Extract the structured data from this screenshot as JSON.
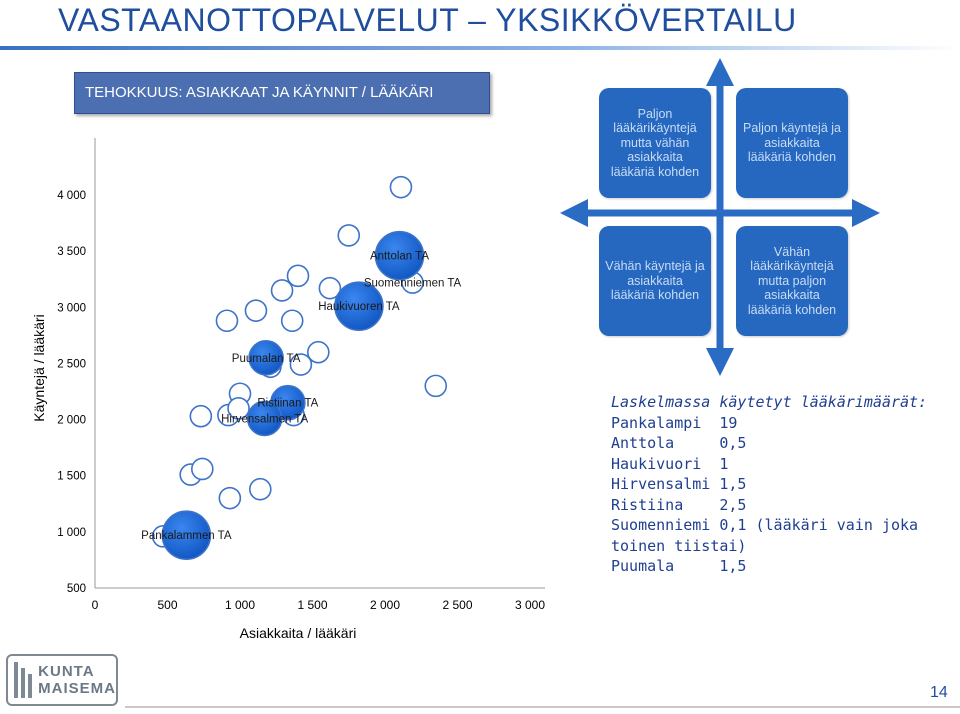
{
  "slide": {
    "title": "VASTAANOTTOPALVELUT – YKSIKKÖVERTAILU",
    "page_number": "14",
    "logo_text_line1": "KUNTA",
    "logo_text_line2": "MAISEMA"
  },
  "chart_data": {
    "type": "scatter",
    "title": "TEHOKKUUS: ASIAKKAAT JA KÄYNNIT / LÄÄKÄRI",
    "xlabel": "Asiakkaita / lääkäri",
    "ylabel": "Käyntejä / lääkäri",
    "xlim": [
      0,
      3000
    ],
    "ylim": [
      500,
      4000
    ],
    "xticks": [
      "0",
      "500",
      "1 000",
      "1 500",
      "2 000",
      "2 500",
      "3 000"
    ],
    "yticks": [
      "500",
      "1 000",
      "1 500",
      "2 000",
      "2 500",
      "3 000",
      "3 500",
      "4 000"
    ],
    "grid": false,
    "legend": "none",
    "colors": {
      "labeled": "#1f6ad6",
      "other": "#ffffff",
      "outline": "#3d73c9"
    },
    "points": [
      {
        "x": 630,
        "y": 970,
        "label": "Pankalammen TA",
        "highlight": true,
        "size": "large"
      },
      {
        "x": 1180,
        "y": 2550,
        "label": "Puumalan TA",
        "highlight": true,
        "size": "medium"
      },
      {
        "x": 1330,
        "y": 2150,
        "label": "Ristiinan TA",
        "highlight": true,
        "size": "medium"
      },
      {
        "x": 1170,
        "y": 2010,
        "label": "Hirvensalmen TA",
        "highlight": true,
        "size": "medium"
      },
      {
        "x": 1820,
        "y": 3010,
        "label": "Haukivuoren TA",
        "highlight": true,
        "size": "large"
      },
      {
        "x": 2100,
        "y": 3460,
        "label": "Anttolan TA",
        "highlight": true,
        "size": "large"
      },
      {
        "x": 2190,
        "y": 3220,
        "label": "Suomenniemen TA",
        "highlight": false,
        "size": "small"
      },
      {
        "x": 470,
        "y": 960,
        "label": "",
        "highlight": false,
        "size": "small"
      },
      {
        "x": 660,
        "y": 1510,
        "label": "",
        "highlight": false,
        "size": "small"
      },
      {
        "x": 740,
        "y": 1560,
        "label": "",
        "highlight": false,
        "size": "small"
      },
      {
        "x": 930,
        "y": 1300,
        "label": "",
        "highlight": false,
        "size": "small"
      },
      {
        "x": 1140,
        "y": 1380,
        "label": "",
        "highlight": false,
        "size": "small"
      },
      {
        "x": 730,
        "y": 2030,
        "label": "",
        "highlight": false,
        "size": "small"
      },
      {
        "x": 920,
        "y": 2040,
        "label": "",
        "highlight": false,
        "size": "small"
      },
      {
        "x": 1000,
        "y": 2230,
        "label": "",
        "highlight": false,
        "size": "small"
      },
      {
        "x": 990,
        "y": 2100,
        "label": "",
        "highlight": false,
        "size": "small"
      },
      {
        "x": 1370,
        "y": 2040,
        "label": "",
        "highlight": false,
        "size": "small"
      },
      {
        "x": 1420,
        "y": 2490,
        "label": "",
        "highlight": false,
        "size": "small"
      },
      {
        "x": 1540,
        "y": 2600,
        "label": "",
        "highlight": false,
        "size": "small"
      },
      {
        "x": 1210,
        "y": 2470,
        "label": "",
        "highlight": false,
        "size": "small"
      },
      {
        "x": 910,
        "y": 2880,
        "label": "",
        "highlight": false,
        "size": "small"
      },
      {
        "x": 1110,
        "y": 2970,
        "label": "",
        "highlight": false,
        "size": "small"
      },
      {
        "x": 1290,
        "y": 3150,
        "label": "",
        "highlight": false,
        "size": "small"
      },
      {
        "x": 1400,
        "y": 3280,
        "label": "",
        "highlight": false,
        "size": "small"
      },
      {
        "x": 1360,
        "y": 2880,
        "label": "",
        "highlight": false,
        "size": "small"
      },
      {
        "x": 1620,
        "y": 3170,
        "label": "",
        "highlight": false,
        "size": "small"
      },
      {
        "x": 1750,
        "y": 3640,
        "label": "",
        "highlight": false,
        "size": "small"
      },
      {
        "x": 2110,
        "y": 4070,
        "label": "",
        "highlight": false,
        "size": "small"
      },
      {
        "x": 2350,
        "y": 2300,
        "label": "",
        "highlight": false,
        "size": "small"
      }
    ]
  },
  "quadrants": [
    {
      "id": "top-left",
      "text": "Paljon lääkärikäyntejä mutta vähän asiakkaita lääkäriä kohden"
    },
    {
      "id": "top-right",
      "text": "Paljon käyntejä ja asiakkaita lääkäriä kohden"
    },
    {
      "id": "bottom-left",
      "text": "Vähän käyntejä ja asiakkaita lääkäriä kohden"
    },
    {
      "id": "bottom-right",
      "text": "Vähän lääkärikäyntejä mutta paljon asiakkaita lääkäriä kohden"
    }
  ],
  "quadrant_colors": {
    "box": "#2668c0",
    "arrow": "#2a6bc4"
  },
  "note": {
    "heading": "Laskelmassa käytetyt lääkärimäärät:",
    "rows": [
      "Pankalampi  19",
      "Anttola     0,5",
      "Haukivuori  1",
      "Hirvensalmi 1,5",
      "Ristiina    2,5",
      "Suomenniemi 0,1 (lääkäri vain joka",
      "toinen tiistai)",
      "Puumala     1,5"
    ]
  }
}
